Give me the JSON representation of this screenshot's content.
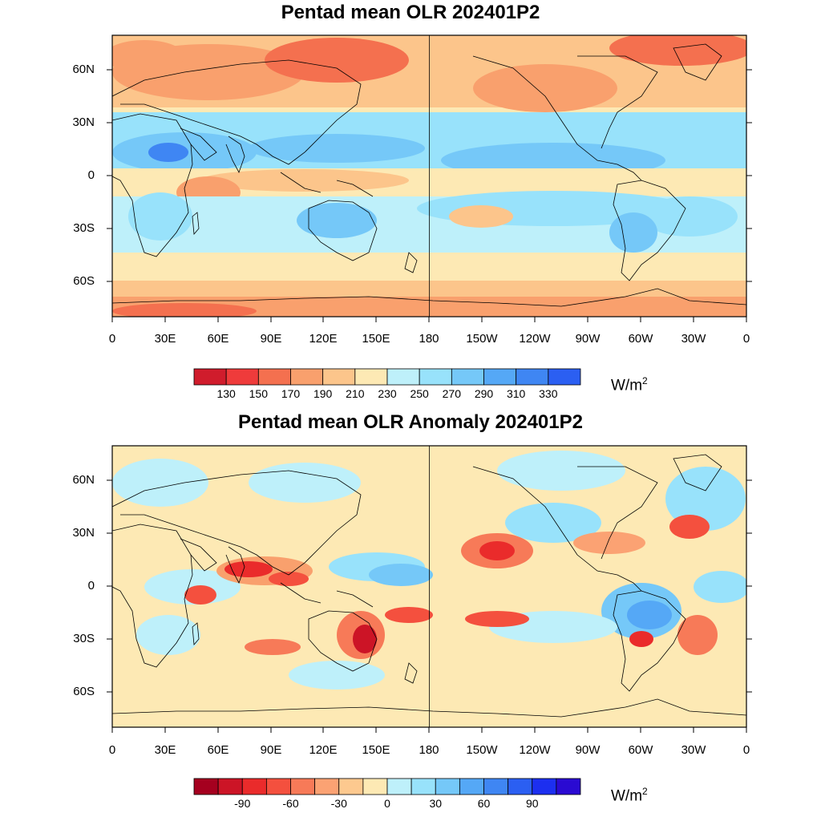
{
  "panels": [
    {
      "title": "Pentad mean OLR 202401P2",
      "lat_labels": [
        "60N",
        "30N",
        "0",
        "30S",
        "60S"
      ],
      "lon_labels": [
        "0",
        "30E",
        "60E",
        "90E",
        "120E",
        "150E",
        "180",
        "150W",
        "120W",
        "90W",
        "60W",
        "30W",
        "0"
      ],
      "colorbar": {
        "colors": [
          "#d01c2c",
          "#ef3b3b",
          "#f4704f",
          "#f9a06d",
          "#fcc58b",
          "#fde9b4",
          "#bef0fa",
          "#98e2fb",
          "#75c8f8",
          "#55a8f6",
          "#3f86f3",
          "#2b5ff2"
        ],
        "labels": [
          "130",
          "150",
          "170",
          "190",
          "210",
          "230",
          "250",
          "270",
          "290",
          "310",
          "330"
        ],
        "units": "W/m",
        "units_sup": "2"
      }
    },
    {
      "title": "Pentad mean OLR Anomaly 202401P2",
      "lat_labels": [
        "60N",
        "30N",
        "0",
        "30S",
        "60S"
      ],
      "lon_labels": [
        "0",
        "30E",
        "60E",
        "90E",
        "120E",
        "150E",
        "180",
        "150W",
        "120W",
        "90W",
        "60W",
        "30W",
        "0"
      ],
      "colorbar": {
        "colors": [
          "#a5001f",
          "#cc1426",
          "#ea2b2b",
          "#f4503e",
          "#f77a58",
          "#fba273",
          "#fdc98f",
          "#fde9b4",
          "#bef0fa",
          "#98e2fb",
          "#75c8f8",
          "#55a8f6",
          "#3f86f3",
          "#2b5ff2",
          "#1c2ff0",
          "#2a0ad2"
        ],
        "labels": [
          "-90",
          "-60",
          "-30",
          "0",
          "30",
          "60",
          "90"
        ],
        "units": "W/m",
        "units_sup": "2"
      }
    }
  ]
}
